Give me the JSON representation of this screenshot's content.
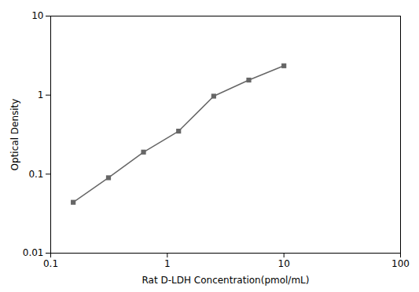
{
  "chart_data": {
    "type": "line",
    "x": [
      0.156,
      0.313,
      0.625,
      1.25,
      2.5,
      5.0,
      10.0
    ],
    "values": [
      0.044,
      0.09,
      0.19,
      0.35,
      0.97,
      1.55,
      2.35
    ],
    "xlabel": "Rat D-LDH Concentration(pmol/mL)",
    "ylabel": "Optical Density",
    "xlim": [
      0.1,
      100
    ],
    "ylim": [
      0.01,
      10
    ],
    "xticks": [
      0.1,
      1,
      10,
      100
    ],
    "yticks": [
      0.01,
      0.1,
      1,
      10
    ],
    "log": true,
    "grid": false,
    "color": "#666666",
    "marker": "square"
  }
}
